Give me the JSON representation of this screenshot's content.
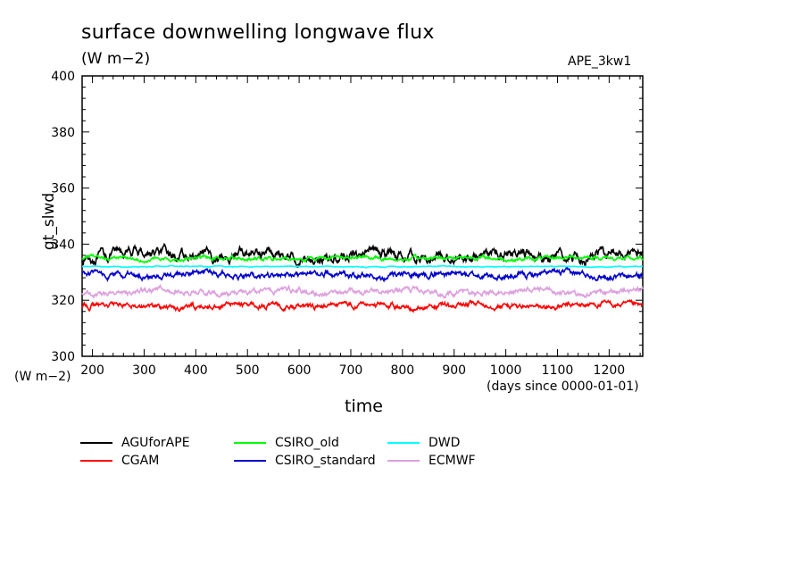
{
  "title": "surface downwelling longwave flux",
  "units": "(W m−2)",
  "experiment": "APE_3kw1",
  "y_unit_label": "(W m−2)",
  "x_unit_label": "(days since 0000-01-01)",
  "chart_data": {
    "type": "line",
    "title": "surface downwelling longwave flux",
    "xlabel": "time",
    "ylabel": "gt_slwd",
    "xlim": [
      180,
      1265
    ],
    "ylim": [
      300,
      400
    ],
    "xticks": [
      200,
      300,
      400,
      500,
      600,
      700,
      800,
      900,
      1000,
      1100,
      1200
    ],
    "yticks": [
      300,
      320,
      340,
      360,
      380,
      400
    ],
    "grid": false,
    "legend_position": "bottom",
    "series": [
      {
        "name": "AGUforAPE",
        "color": "#000000",
        "x": [
          180,
          1265
        ],
        "mean": 336.0,
        "amplitude": 2.4
      },
      {
        "name": "CGAM",
        "color": "#ff0000",
        "x": [
          180,
          1265
        ],
        "mean": 318.0,
        "amplitude": 1.3
      },
      {
        "name": "CSIRO_old",
        "color": "#00ff00",
        "x": [
          180,
          1265
        ],
        "mean": 335.0,
        "amplitude": 0.9
      },
      {
        "name": "CSIRO_standard",
        "color": "#0000cc",
        "x": [
          180,
          1265
        ],
        "mean": 329.0,
        "amplitude": 1.4
      },
      {
        "name": "DWD",
        "color": "#00ffff",
        "x": [
          180,
          1265
        ],
        "mean": 332.0,
        "amplitude": 0.2
      },
      {
        "name": "ECMWF",
        "color": "#dda0dd",
        "x": [
          180,
          1265
        ],
        "mean": 323.0,
        "amplitude": 1.3
      }
    ]
  }
}
